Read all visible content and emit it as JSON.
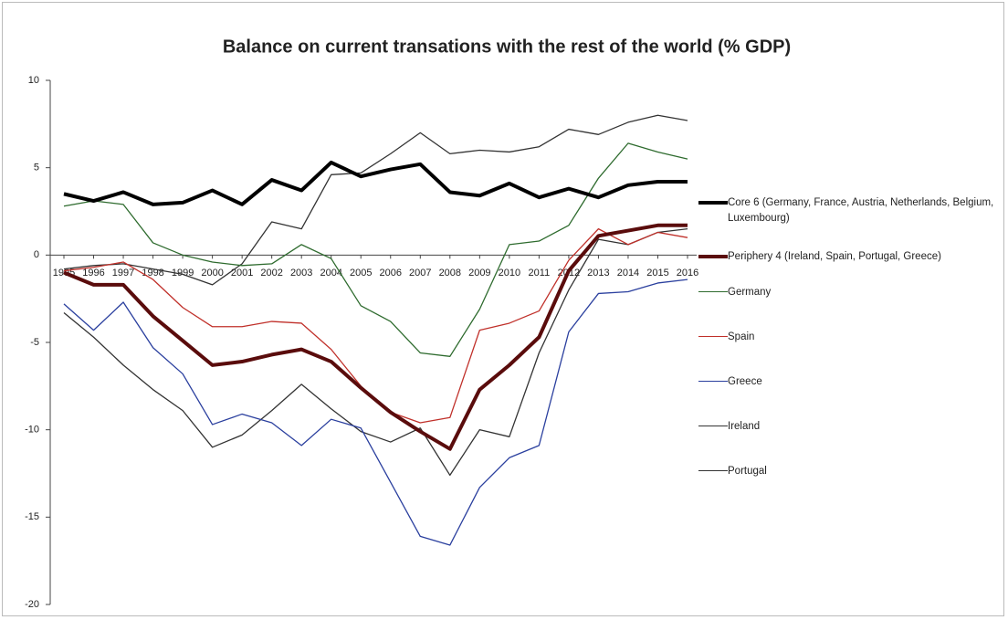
{
  "chart_data": {
    "type": "line",
    "title": "Balance on current transations with the rest of the world (% GDP)",
    "categories": [
      "1995",
      "1996",
      "1997",
      "1998",
      "1999",
      "2000",
      "2001",
      "2002",
      "2003",
      "2004",
      "2005",
      "2006",
      "2007",
      "2008",
      "2009",
      "2010",
      "2011",
      "2012",
      "2013",
      "2014",
      "2015",
      "2016"
    ],
    "ylim": [
      -20,
      10
    ],
    "yticks": [
      -20,
      -15,
      -10,
      -5,
      0,
      5,
      10
    ],
    "legend": "right",
    "series": [
      {
        "name": "Core 6 (Germany, France, Austria, Netherlands, Belgium, Luxembourg)",
        "color": "#000000",
        "width": 4,
        "values": [
          3.5,
          3.1,
          3.6,
          2.9,
          3.0,
          3.7,
          2.9,
          4.3,
          3.7,
          5.3,
          4.5,
          4.9,
          5.2,
          3.6,
          3.4,
          4.1,
          3.3,
          3.8,
          3.3,
          4.0,
          4.2,
          4.2
        ]
      },
      {
        "name": "Periphery 4 (Ireland, Spain, Portugal, Greece)",
        "color": "#5a0c0c",
        "width": 4,
        "values": [
          -1.0,
          -1.7,
          -1.7,
          -3.5,
          -4.9,
          -6.3,
          -6.1,
          -5.7,
          -5.4,
          -6.1,
          -7.6,
          -9.0,
          -10.1,
          -11.1,
          -7.7,
          -6.3,
          -4.7,
          -0.9,
          1.1,
          1.4,
          1.7,
          1.7
        ]
      },
      {
        "name": "Germany",
        "color": "#2e6b2e",
        "width": 1.3,
        "values": [
          2.8,
          3.1,
          2.9,
          0.7,
          0.0,
          -0.4,
          -0.6,
          -0.5,
          0.6,
          -0.2,
          -2.9,
          -3.8,
          -5.6,
          -5.8,
          -3.1,
          0.6,
          0.8,
          1.7,
          4.4,
          6.4,
          5.9,
          5.5
        ]
      },
      {
        "name": "Spain",
        "color": "#c0302a",
        "width": 1.3,
        "values": [
          -0.9,
          -0.7,
          -0.4,
          -1.4,
          -3.0,
          -4.1,
          -4.1,
          -3.8,
          -3.9,
          -5.4,
          -7.5,
          -9.0,
          -9.6,
          -9.3,
          -4.3,
          -3.9,
          -3.2,
          -0.3,
          1.5,
          0.6,
          1.3,
          1.0
        ]
      },
      {
        "name": "Greece",
        "color": "#2a3f9e",
        "width": 1.3,
        "values": [
          -2.8,
          -4.3,
          -2.7,
          -5.3,
          -6.8,
          -9.7,
          -9.1,
          -9.6,
          -10.9,
          -9.4,
          -9.9,
          -13.0,
          -16.1,
          -16.6,
          -13.3,
          -11.6,
          -10.9,
          -4.4,
          -2.2,
          -2.1,
          -1.6,
          -1.4
        ]
      },
      {
        "name": "Ireland",
        "color": "#333333",
        "width": 1.3,
        "values": [
          -0.8,
          -0.6,
          -0.5,
          -0.8,
          -1.1,
          -1.7,
          -0.5,
          1.9,
          1.5,
          4.6,
          4.7,
          5.8,
          7.0,
          5.8,
          6.0,
          5.9,
          6.2,
          7.2,
          6.9,
          7.6,
          8.0,
          7.7
        ]
      },
      {
        "name": "Portugal",
        "color": "#333333",
        "width": 1.3,
        "values": [
          -3.3,
          -4.7,
          -6.3,
          -7.7,
          -8.9,
          -11.0,
          -10.3,
          -8.9,
          -7.4,
          -8.8,
          -10.1,
          -10.7,
          -9.9,
          -12.6,
          -10.0,
          -10.4,
          -5.6,
          -2.0,
          0.9,
          0.6,
          1.3,
          1.5
        ]
      }
    ]
  }
}
